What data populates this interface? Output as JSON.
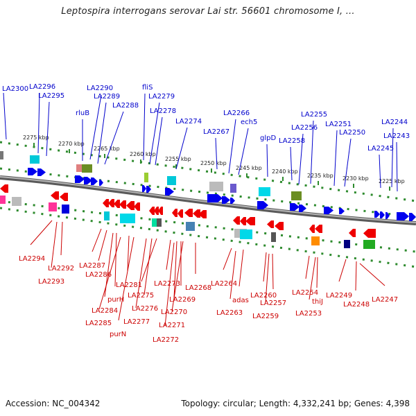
{
  "title": "Leptospira interrogans serovar Lai str. 56601 chromosome I, ...",
  "footer": {
    "accession": "Accession: NC_004342",
    "summary": "Topology: circular; Length: 4,332,241 bp; Genes: 4,398"
  },
  "colors": {
    "upper_label": "#0000cc",
    "lower_label": "#cc0000",
    "upper_arrow": "#0000ee",
    "lower_arrow": "#ee0000",
    "backbone": "#888888",
    "track_dots": "#2e8b2e"
  },
  "scale_ticks": [
    "2275 kbp",
    "2270 kbp",
    "2265 kbp",
    "2260 kbp",
    "2255 kbp",
    "2250 kbp",
    "2245 kbp",
    "2240 kbp",
    "2235 kbp",
    "2230 kbp",
    "2225 kbp"
  ],
  "upper_labels": [
    "LA2300",
    "LA2296",
    "LA2295",
    "rluB",
    "LA2290",
    "LA2289",
    "LA2288",
    "fliS",
    "LA2279",
    "LA2278",
    "LA2274",
    "LA2267",
    "LA2266",
    "ech5",
    "glpD",
    "LA2258",
    "LA2256",
    "LA2255",
    "LA2251",
    "LA2250",
    "LA2245",
    "LA2244",
    "LA2243"
  ],
  "lower_labels": [
    "LA2294",
    "LA2292",
    "LA2293",
    "LA2287",
    "LA2286",
    "purH",
    "LA2281",
    "LA2284",
    "LA2285",
    "purN",
    "LA2277",
    "LA2276",
    "LA2275",
    "LA2273",
    "LA2269",
    "LA2270",
    "LA2271",
    "LA2272",
    "LA2268",
    "LA2264",
    "adas",
    "LA2263",
    "LA2260",
    "LA2257",
    "LA2259",
    "LA2254",
    "thiJ",
    "LA2253",
    "LA2249",
    "LA2248",
    "LA2247"
  ]
}
